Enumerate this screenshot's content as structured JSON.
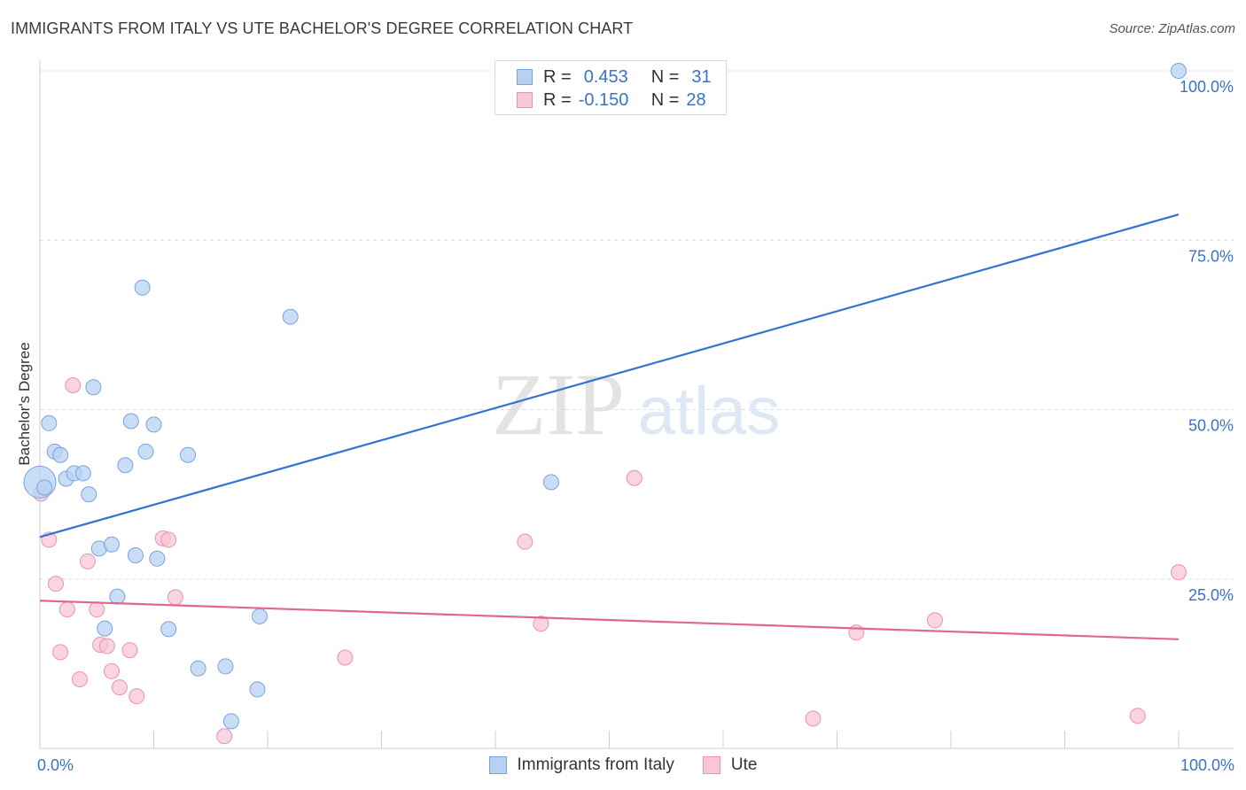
{
  "title": "IMMIGRANTS FROM ITALY VS UTE BACHELOR'S DEGREE CORRELATION CHART",
  "source": "Source: ZipAtlas.com",
  "watermark": {
    "zip": "ZIP",
    "atlas": "atlas"
  },
  "stats": [
    {
      "r_label": "R =",
      "r_value": "0.453",
      "n_label": "N =",
      "n_value": "31"
    },
    {
      "r_label": "R =",
      "r_value": "-0.150",
      "n_label": "N =",
      "n_value": "28"
    }
  ],
  "legend": [
    {
      "label": "Immigrants from Italy"
    },
    {
      "label": "Ute"
    }
  ],
  "colors": {
    "blue_fill": "#b8d1f3",
    "blue_stroke": "#7aa3dc",
    "blue_line": "#2f74d0",
    "pink_fill": "#f8c6d6",
    "pink_stroke": "#ec92b0",
    "pink_line": "#e0678f",
    "tick_label": "#3b73c4"
  },
  "chart_data": {
    "type": "scatter",
    "title": "IMMIGRANTS FROM ITALY VS UTE BACHELOR'S DEGREE CORRELATION CHART",
    "xlabel": "",
    "ylabel": "Bachelor's Degree",
    "xlim": [
      0,
      100
    ],
    "ylim": [
      0,
      100
    ],
    "x_tick_labels": [
      {
        "value": 0,
        "label": "0.0%"
      },
      {
        "value": 100,
        "label": "100.0%"
      }
    ],
    "y_tick_labels": [
      {
        "value": 25,
        "label": "25.0%"
      },
      {
        "value": 50,
        "label": "50.0%"
      },
      {
        "value": 75,
        "label": "75.0%"
      },
      {
        "value": 100,
        "label": "100.0%"
      }
    ],
    "grid": true,
    "series": [
      {
        "name": "Immigrants from Italy",
        "color": "blue",
        "points": [
          {
            "x": 0.0,
            "y": 39.3,
            "big": true
          },
          {
            "x": 0.8,
            "y": 48.0
          },
          {
            "x": 1.3,
            "y": 43.8
          },
          {
            "x": 1.8,
            "y": 43.3
          },
          {
            "x": 2.3,
            "y": 39.8
          },
          {
            "x": 3.0,
            "y": 40.6
          },
          {
            "x": 3.8,
            "y": 40.6
          },
          {
            "x": 4.3,
            "y": 37.5
          },
          {
            "x": 4.7,
            "y": 53.3
          },
          {
            "x": 5.2,
            "y": 29.5
          },
          {
            "x": 5.7,
            "y": 17.7
          },
          {
            "x": 6.3,
            "y": 30.1
          },
          {
            "x": 6.8,
            "y": 22.4
          },
          {
            "x": 7.5,
            "y": 41.8
          },
          {
            "x": 8.0,
            "y": 48.3
          },
          {
            "x": 8.4,
            "y": 28.5
          },
          {
            "x": 9.0,
            "y": 68.0
          },
          {
            "x": 9.3,
            "y": 43.8
          },
          {
            "x": 10.0,
            "y": 47.8
          },
          {
            "x": 10.3,
            "y": 28.0
          },
          {
            "x": 11.3,
            "y": 17.6
          },
          {
            "x": 13.0,
            "y": 43.3
          },
          {
            "x": 13.9,
            "y": 11.8
          },
          {
            "x": 16.3,
            "y": 12.1
          },
          {
            "x": 16.8,
            "y": 4.0
          },
          {
            "x": 19.3,
            "y": 19.5
          },
          {
            "x": 19.1,
            "y": 8.7
          },
          {
            "x": 22.0,
            "y": 63.7
          },
          {
            "x": 44.9,
            "y": 39.3
          },
          {
            "x": 100.0,
            "y": 100.0
          },
          {
            "x": 0.4,
            "y": 38.5
          }
        ],
        "trend": {
          "x1": 0,
          "y1": 31.2,
          "x2": 100,
          "y2": 78.8
        }
      },
      {
        "name": "Ute",
        "color": "pink",
        "points": [
          {
            "x": 0.1,
            "y": 37.6
          },
          {
            "x": 0.8,
            "y": 30.8
          },
          {
            "x": 1.4,
            "y": 24.3
          },
          {
            "x": 1.8,
            "y": 14.2
          },
          {
            "x": 2.4,
            "y": 20.5
          },
          {
            "x": 2.9,
            "y": 53.6
          },
          {
            "x": 3.5,
            "y": 10.2
          },
          {
            "x": 4.2,
            "y": 27.6
          },
          {
            "x": 5.0,
            "y": 20.5
          },
          {
            "x": 5.3,
            "y": 15.3
          },
          {
            "x": 5.9,
            "y": 15.1
          },
          {
            "x": 6.3,
            "y": 11.4
          },
          {
            "x": 7.0,
            "y": 9.0
          },
          {
            "x": 7.9,
            "y": 14.5
          },
          {
            "x": 8.5,
            "y": 7.7
          },
          {
            "x": 10.8,
            "y": 31.0
          },
          {
            "x": 11.3,
            "y": 30.8
          },
          {
            "x": 11.9,
            "y": 22.3
          },
          {
            "x": 16.2,
            "y": 1.8
          },
          {
            "x": 26.8,
            "y": 13.4
          },
          {
            "x": 42.6,
            "y": 30.5
          },
          {
            "x": 44.0,
            "y": 18.4
          },
          {
            "x": 52.2,
            "y": 39.9
          },
          {
            "x": 67.9,
            "y": 4.4
          },
          {
            "x": 71.7,
            "y": 17.1
          },
          {
            "x": 78.6,
            "y": 18.9
          },
          {
            "x": 96.4,
            "y": 4.8
          },
          {
            "x": 100.0,
            "y": 26.0
          }
        ],
        "trend": {
          "x1": 0,
          "y1": 21.8,
          "x2": 100,
          "y2": 16.1
        }
      }
    ]
  }
}
